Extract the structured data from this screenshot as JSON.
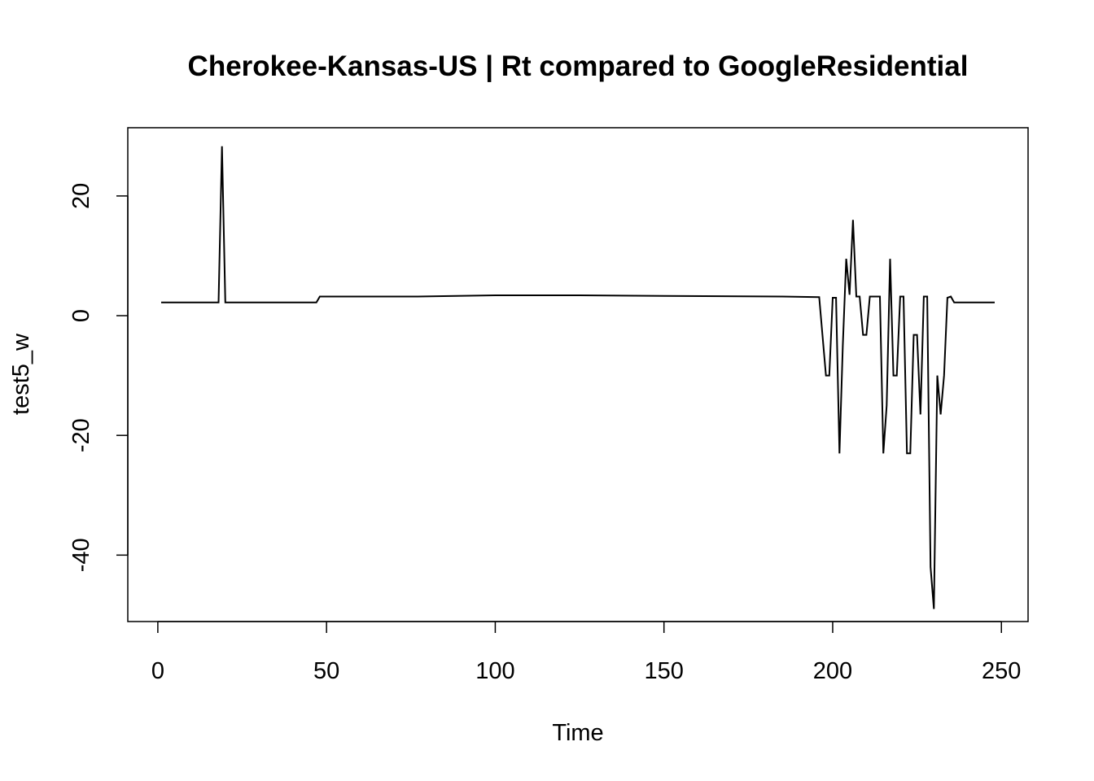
{
  "chart_data": {
    "type": "line",
    "title": "Cherokee-Kansas-US | Rt compared to GoogleResidential",
    "xlabel": "Time",
    "ylabel": "test5_w",
    "xlim": [
      -8.9,
      257.9
    ],
    "ylim": [
      -51.1,
      31.4
    ],
    "x_ticks": [
      0,
      50,
      100,
      150,
      200,
      250
    ],
    "y_ticks": [
      -40,
      -20,
      0,
      20
    ],
    "grid": false,
    "line_color": "#000000",
    "series": [
      {
        "x": [
          1,
          18,
          19,
          20,
          47,
          48,
          77,
          100,
          125,
          150,
          185,
          196,
          198,
          199,
          200,
          201,
          202,
          203,
          204,
          205,
          206,
          207,
          208,
          209,
          210,
          211,
          212,
          213,
          214,
          215,
          216,
          217,
          218,
          219,
          220,
          221,
          222,
          223,
          224,
          225,
          226,
          227,
          228,
          229,
          230,
          231,
          232,
          233,
          234,
          235,
          236,
          237,
          248
        ],
        "y": [
          2.2,
          2.2,
          28.3,
          2.2,
          2.2,
          3.2,
          3.2,
          3.4,
          3.4,
          3.3,
          3.2,
          3.1,
          -10.0,
          -10.0,
          3.0,
          3.0,
          -23.0,
          -5.0,
          9.5,
          3.5,
          16.0,
          3.2,
          3.2,
          -3.2,
          -3.2,
          3.2,
          3.2,
          3.2,
          3.2,
          -23.0,
          -15.0,
          9.5,
          -10.0,
          -10.0,
          3.2,
          3.2,
          -23.0,
          -23.0,
          -3.2,
          -3.2,
          -16.5,
          3.2,
          3.2,
          -42.0,
          -49.0,
          -10.0,
          -16.5,
          -10.0,
          3.0,
          3.2,
          2.2,
          2.2,
          2.2
        ]
      }
    ]
  }
}
